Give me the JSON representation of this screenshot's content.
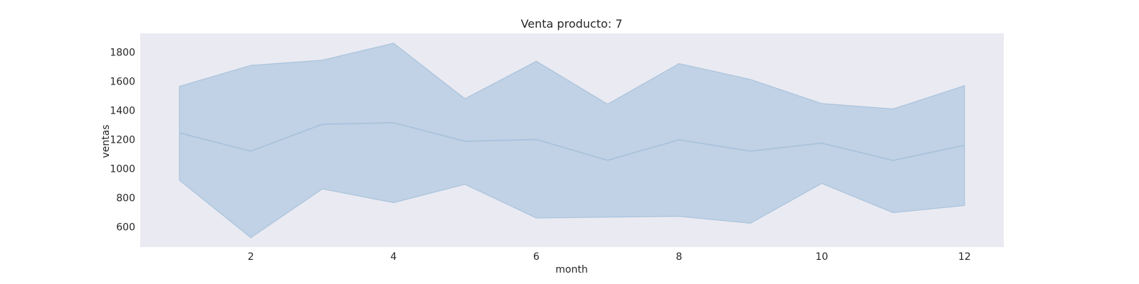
{
  "chart_data": {
    "type": "area",
    "title": "Venta producto: 7",
    "xlabel": "month",
    "ylabel": "ventas",
    "x": [
      1,
      2,
      3,
      4,
      5,
      6,
      7,
      8,
      9,
      10,
      11,
      12
    ],
    "series": [
      {
        "values": [
          1245,
          1120,
          1305,
          1315,
          1188,
          1200,
          1057,
          1198,
          1120,
          1175,
          1056,
          1160
        ],
        "upper": [
          1565,
          1710,
          1745,
          1862,
          1480,
          1738,
          1443,
          1722,
          1613,
          1447,
          1410,
          1570
        ],
        "lower": [
          920,
          525,
          860,
          766,
          892,
          660,
          666,
          672,
          624,
          898,
          697,
          746
        ]
      }
    ],
    "xticks": [
      2,
      4,
      6,
      8,
      10,
      12
    ],
    "yticks": [
      600,
      800,
      1000,
      1200,
      1400,
      1600,
      1800
    ],
    "xlim": [
      0.45,
      12.55
    ],
    "ylim": [
      460,
      1930
    ],
    "grid": false,
    "colors": {
      "background": "#eaeaf2",
      "band_fill": "#a8c4de",
      "line": "#a9c3db"
    }
  }
}
